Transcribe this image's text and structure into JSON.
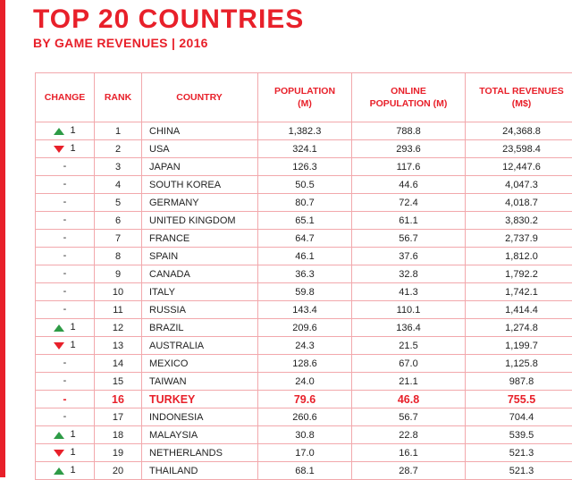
{
  "title": "TOP 20 COUNTRIES",
  "subtitle": "BY GAME REVENUES | 2016",
  "colors": {
    "accent": "#e8202a",
    "up": "#2e9b46",
    "down": "#e8202a"
  },
  "columns": {
    "change": "CHANGE",
    "rank": "RANK",
    "country": "COUNTRY",
    "population": "POPULATION (M)",
    "online_population": "ONLINE POPULATION (M)",
    "total_revenues": "TOTAL REVENUES (M$)"
  },
  "rows": [
    {
      "change": "1",
      "dir": "up",
      "rank": "1",
      "country": "CHINA",
      "population": "1,382.3",
      "online": "788.8",
      "revenue": "24,368.8"
    },
    {
      "change": "1",
      "dir": "down",
      "rank": "2",
      "country": "USA",
      "population": "324.1",
      "online": "293.6",
      "revenue": "23,598.4"
    },
    {
      "change": "-",
      "dir": "none",
      "rank": "3",
      "country": "JAPAN",
      "population": "126.3",
      "online": "117.6",
      "revenue": "12,447.6"
    },
    {
      "change": "-",
      "dir": "none",
      "rank": "4",
      "country": "SOUTH KOREA",
      "population": "50.5",
      "online": "44.6",
      "revenue": "4,047.3"
    },
    {
      "change": "-",
      "dir": "none",
      "rank": "5",
      "country": "GERMANY",
      "population": "80.7",
      "online": "72.4",
      "revenue": "4,018.7"
    },
    {
      "change": "-",
      "dir": "none",
      "rank": "6",
      "country": "UNITED KINGDOM",
      "population": "65.1",
      "online": "61.1",
      "revenue": "3,830.2"
    },
    {
      "change": "-",
      "dir": "none",
      "rank": "7",
      "country": "FRANCE",
      "population": "64.7",
      "online": "56.7",
      "revenue": "2,737.9"
    },
    {
      "change": "-",
      "dir": "none",
      "rank": "8",
      "country": "SPAIN",
      "population": "46.1",
      "online": "37.6",
      "revenue": "1,812.0"
    },
    {
      "change": "-",
      "dir": "none",
      "rank": "9",
      "country": "CANADA",
      "population": "36.3",
      "online": "32.8",
      "revenue": "1,792.2"
    },
    {
      "change": "-",
      "dir": "none",
      "rank": "10",
      "country": "ITALY",
      "population": "59.8",
      "online": "41.3",
      "revenue": "1,742.1"
    },
    {
      "change": "-",
      "dir": "none",
      "rank": "11",
      "country": "RUSSIA",
      "population": "143.4",
      "online": "110.1",
      "revenue": "1,414.4"
    },
    {
      "change": "1",
      "dir": "up",
      "rank": "12",
      "country": "BRAZIL",
      "population": "209.6",
      "online": "136.4",
      "revenue": "1,274.8"
    },
    {
      "change": "1",
      "dir": "down",
      "rank": "13",
      "country": "AUSTRALIA",
      "population": "24.3",
      "online": "21.5",
      "revenue": "1,199.7"
    },
    {
      "change": "-",
      "dir": "none",
      "rank": "14",
      "country": "MEXICO",
      "population": "128.6",
      "online": "67.0",
      "revenue": "1,125.8"
    },
    {
      "change": "-",
      "dir": "none",
      "rank": "15",
      "country": "TAIWAN",
      "population": "24.0",
      "online": "21.1",
      "revenue": "987.8"
    },
    {
      "change": "-",
      "dir": "none",
      "rank": "16",
      "country": "TURKEY",
      "population": "79.6",
      "online": "46.8",
      "revenue": "755.5",
      "highlight": true
    },
    {
      "change": "-",
      "dir": "none",
      "rank": "17",
      "country": "INDONESIA",
      "population": "260.6",
      "online": "56.7",
      "revenue": "704.4"
    },
    {
      "change": "1",
      "dir": "up",
      "rank": "18",
      "country": "MALAYSIA",
      "population": "30.8",
      "online": "22.8",
      "revenue": "539.5"
    },
    {
      "change": "1",
      "dir": "down",
      "rank": "19",
      "country": "NETHERLANDS",
      "population": "17.0",
      "online": "16.1",
      "revenue": "521.3"
    },
    {
      "change": "1",
      "dir": "up",
      "rank": "20",
      "country": "THAILAND",
      "population": "68.1",
      "online": "28.7",
      "revenue": "521.3"
    }
  ]
}
